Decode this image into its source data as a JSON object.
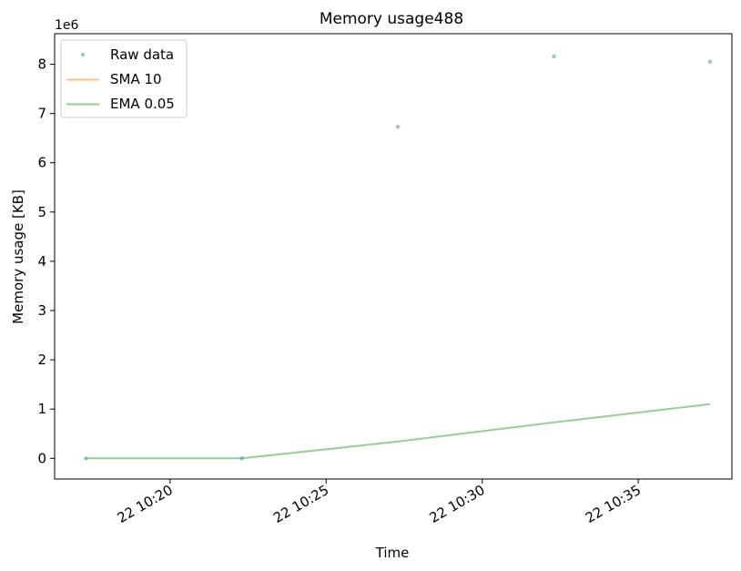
{
  "chart_data": {
    "type": "line",
    "title": "Memory usage488",
    "xlabel": "Time",
    "ylabel": "Memory usage [KB]",
    "y_offset_label": "1e6",
    "y_scale": 1000000,
    "x_unit": "minutes past 10:00",
    "xlim": [
      16.3,
      38.0
    ],
    "ylim": [
      -0.42,
      8.62
    ],
    "x_ticks": [
      {
        "value": 20,
        "label": "22 10:20"
      },
      {
        "value": 25,
        "label": "22 10:25"
      },
      {
        "value": 30,
        "label": "22 10:30"
      },
      {
        "value": 35,
        "label": "22 10:35"
      }
    ],
    "y_ticks": [
      {
        "value": 0,
        "label": "0"
      },
      {
        "value": 1,
        "label": "1"
      },
      {
        "value": 2,
        "label": "2"
      },
      {
        "value": 3,
        "label": "3"
      },
      {
        "value": 4,
        "label": "4"
      },
      {
        "value": 5,
        "label": "5"
      },
      {
        "value": 6,
        "label": "6"
      },
      {
        "value": 7,
        "label": "7"
      },
      {
        "value": 8,
        "label": "8"
      }
    ],
    "legend_position": "upper-left",
    "grid": false,
    "series": [
      {
        "name": "Raw data",
        "style": "markers",
        "color": "#1f77b4",
        "x": [
          17.3,
          22.3,
          27.3,
          32.3,
          37.3
        ],
        "y": [
          0.0,
          0.0,
          6.73,
          8.16,
          8.05
        ]
      },
      {
        "name": "SMA 10",
        "style": "line",
        "color": "#ff7f0e",
        "x": [],
        "y": []
      },
      {
        "name": "EMA 0.05",
        "style": "line",
        "color": "#2ca02c",
        "x": [
          17.3,
          22.3,
          27.3,
          32.3,
          37.3
        ],
        "y": [
          0.0,
          0.0,
          0.34,
          0.73,
          1.1
        ]
      }
    ]
  }
}
